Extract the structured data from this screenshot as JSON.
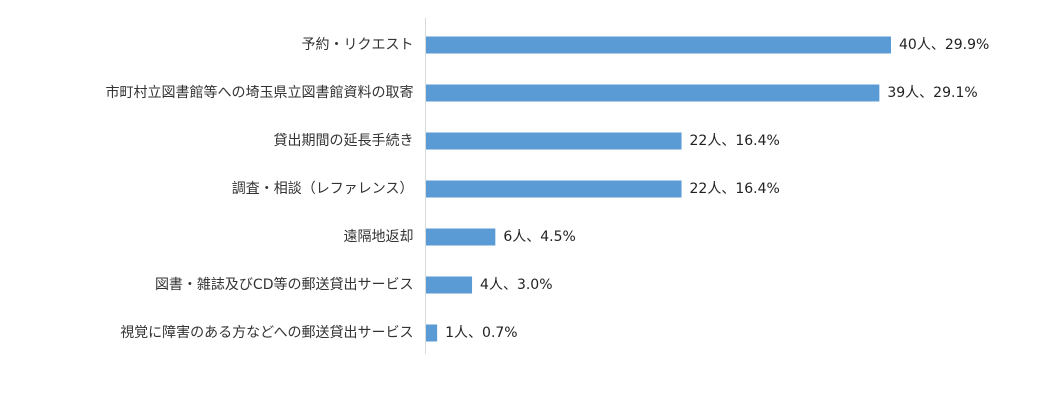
{
  "chart_data": {
    "type": "bar",
    "orientation": "horizontal",
    "title": "",
    "xlabel": "",
    "ylabel": "",
    "categories": [
      "予約・リクエスト",
      "市町村立図書館等への埼玉県立図書館資料の取寄",
      "貸出期間の延長手続き",
      "調査・相談（レファレンス）",
      "遠隔地返却",
      "図書・雑誌及びCD等の郵送貸出サービス",
      "視覚に障害のある方などへの郵送貸出サービス"
    ],
    "series": [
      {
        "values": [
          40,
          39,
          22,
          22,
          6,
          4,
          1
        ],
        "percent": [
          29.9,
          29.1,
          16.4,
          16.4,
          4.5,
          3.0,
          0.7
        ],
        "color": "#5B9BD5"
      }
    ],
    "data_labels": [
      "40人、29.9%",
      "39人、29.1%",
      "22人、16.4%",
      "22人、16.4%",
      "6人、4.5%",
      "4人、3.0%",
      "1人、0.7%"
    ],
    "xlim": [
      0,
      40
    ],
    "grid": false,
    "legend": "none",
    "axis_color": "#D9D9D9"
  }
}
